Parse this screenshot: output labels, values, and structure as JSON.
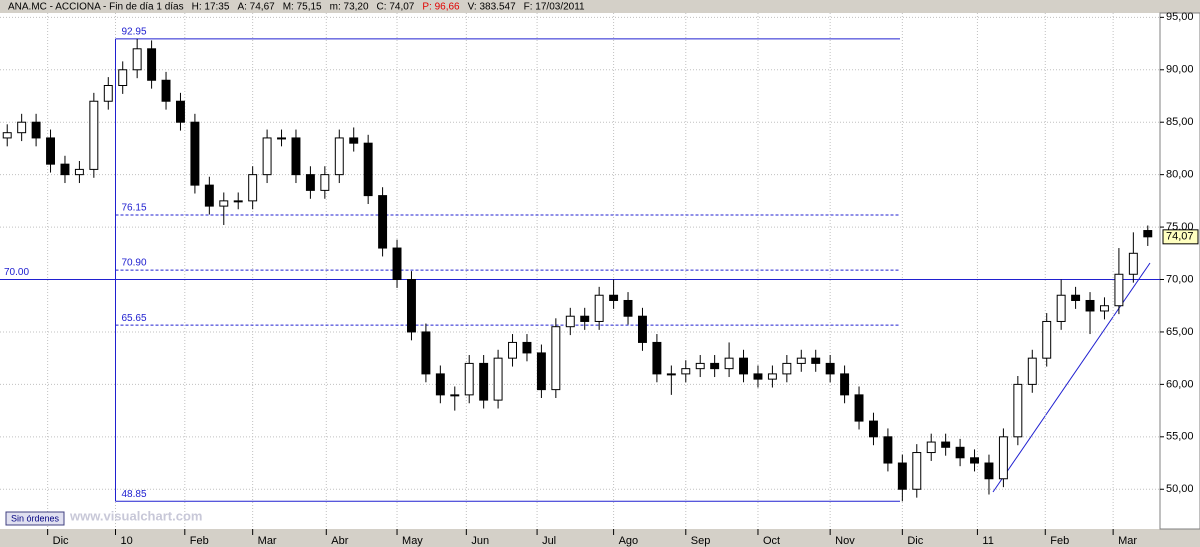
{
  "header": [
    "ANA.MC - ACCIONA - Fin de día 1 días",
    "H: 17:35",
    "A: 74,67",
    "M: 75,15",
    "m: 73,20",
    "C: 74,07",
    "P: 96,66",
    "V: 383.547",
    "F: 17/03/2011"
  ],
  "button": "Sin órdenes",
  "watermark": "www.visualchart.com",
  "chart_data": {
    "type": "candlestick",
    "open": [
      83.5,
      84,
      85,
      83.5,
      81,
      80,
      80.5,
      87,
      88.5,
      90,
      92,
      89,
      87,
      85,
      79,
      77,
      77.5,
      77.5,
      80,
      83.5,
      83.5,
      80,
      78.5,
      80,
      83.5,
      83,
      78,
      73,
      70,
      65,
      61,
      59,
      59,
      62,
      58.5,
      62.5,
      64,
      63,
      59.5,
      65.5,
      66.5,
      66,
      68.5,
      68,
      66.5,
      64,
      61,
      61,
      61.5,
      62,
      61.5,
      62.5,
      61,
      60.5,
      61,
      62,
      62.5,
      62,
      61,
      59,
      56.5,
      55,
      52.5,
      50,
      53.5,
      54.5,
      54,
      53,
      52.5,
      51,
      55,
      60,
      62.5,
      66,
      68.5,
      68,
      67,
      67.5,
      70.5,
      74.67
    ],
    "high": [
      84.8,
      85.8,
      85.8,
      84.3,
      81.8,
      81.3,
      87.8,
      89.3,
      90.8,
      92.95,
      92.8,
      89.8,
      87.8,
      85.8,
      79.8,
      78.3,
      78.3,
      80.8,
      84.3,
      84.3,
      84.3,
      80.8,
      80.8,
      84.3,
      84.5,
      83.8,
      78.8,
      73.8,
      70.8,
      65.8,
      61.8,
      59.8,
      62.8,
      62.8,
      63.3,
      64.8,
      64.8,
      63.8,
      66.3,
      67.3,
      67.3,
      69.3,
      70,
      68.8,
      67.3,
      64.8,
      61.8,
      62.3,
      62.8,
      62.8,
      64,
      63.3,
      61.8,
      61.8,
      62.8,
      63.3,
      63.3,
      62.8,
      61.8,
      59.8,
      57.3,
      55.8,
      53.3,
      54.3,
      55.3,
      55.3,
      54.8,
      53.8,
      53.3,
      55.8,
      60.8,
      63.3,
      66.8,
      70,
      69.3,
      68.8,
      68.3,
      73,
      74.5,
      75.15
    ],
    "low": [
      82.7,
      83.2,
      82.7,
      80.2,
      79.2,
      79.2,
      79.7,
      86.2,
      87.7,
      89.2,
      88.2,
      86.2,
      84.2,
      78.2,
      76.2,
      75.2,
      76.7,
      76.7,
      79.2,
      82.7,
      79.2,
      77.7,
      77.7,
      79.2,
      82.2,
      77.2,
      72.2,
      69.2,
      64.2,
      60.2,
      58.2,
      57.5,
      58.2,
      57.7,
      57.7,
      61.7,
      62.2,
      58.7,
      58.7,
      64.7,
      65.2,
      65.2,
      67.2,
      65.7,
      63.2,
      60.2,
      59,
      60.2,
      60.7,
      60.7,
      60.7,
      60.2,
      59.7,
      59.7,
      60.2,
      61.2,
      61.2,
      60.2,
      58.2,
      55.7,
      54.2,
      51.7,
      48.85,
      49.2,
      52.7,
      53.2,
      52.2,
      51.7,
      49.5,
      50.2,
      54.2,
      59.2,
      61.7,
      65.2,
      67.2,
      64.8,
      66.2,
      66.7,
      69.7,
      73.2
    ],
    "close": [
      84,
      85,
      83.5,
      81,
      80,
      80.5,
      87,
      88.5,
      90,
      92,
      89,
      87,
      85,
      79,
      77,
      77.5,
      77.5,
      80,
      83.5,
      83.5,
      80,
      78.5,
      80,
      83.5,
      83,
      78,
      73,
      70,
      65,
      61,
      59,
      59,
      62,
      58.5,
      62.5,
      64,
      63,
      59.5,
      65.5,
      66.5,
      66,
      68.5,
      68,
      66.5,
      64,
      61,
      61,
      61.5,
      62,
      61.5,
      62.5,
      61,
      60.5,
      61,
      62,
      62.5,
      62,
      61,
      59,
      56.5,
      55,
      52.5,
      50,
      53.5,
      54.5,
      54,
      53,
      52.5,
      51,
      55,
      60,
      62.5,
      66,
      68.5,
      68,
      67,
      67.5,
      70.5,
      72.5,
      74.07
    ],
    "last_price": {
      "value": 74.07,
      "label": "74,07"
    },
    "xlim": [
      0,
      80
    ],
    "xticks": [
      {
        "value": 3.3,
        "label": "Dic"
      },
      {
        "value": 8,
        "label": "10"
      },
      {
        "value": 12.8,
        "label": "Feb"
      },
      {
        "value": 17.5,
        "label": "Mar"
      },
      {
        "value": 22.6,
        "label": "Abr"
      },
      {
        "value": 27.5,
        "label": "May"
      },
      {
        "value": 32.3,
        "label": "Jun"
      },
      {
        "value": 37.2,
        "label": "Jul"
      },
      {
        "value": 42.5,
        "label": "Ago"
      },
      {
        "value": 47.5,
        "label": "Sep"
      },
      {
        "value": 52.5,
        "label": "Oct"
      },
      {
        "value": 57.5,
        "label": "Nov"
      },
      {
        "value": 62.5,
        "label": "Dic"
      },
      {
        "value": 67.7,
        "label": "11"
      },
      {
        "value": 72.4,
        "label": "Feb"
      },
      {
        "value": 77.1,
        "label": "Mar"
      }
    ],
    "ylim": [
      46.4,
      95.7
    ],
    "yticks": [
      {
        "value": 50,
        "label": "50,00"
      },
      {
        "value": 55,
        "label": "55,00"
      },
      {
        "value": 60,
        "label": "60,00"
      },
      {
        "value": 65,
        "label": "65,00"
      },
      {
        "value": 70,
        "label": "70,00"
      },
      {
        "value": 75,
        "label": "75,00"
      },
      {
        "value": 80,
        "label": "80,00"
      },
      {
        "value": 85,
        "label": "85,00"
      },
      {
        "value": 90,
        "label": "90,00"
      },
      {
        "value": 95,
        "label": "95,00"
      }
    ],
    "grid": true,
    "levels": [
      {
        "value": 92.95,
        "label": "92.95",
        "dashed": false
      },
      {
        "value": 76.15,
        "label": "76.15",
        "dashed": true
      },
      {
        "value": 70.9,
        "label": "70.90",
        "dashed": true
      },
      {
        "value": 65.65,
        "label": "65.65",
        "dashed": true
      },
      {
        "value": 48.85,
        "label": "48.85",
        "dashed": false
      }
    ],
    "horizontal_line": {
      "value": 70,
      "label": "70.00"
    },
    "line_color": "#2020d0"
  }
}
